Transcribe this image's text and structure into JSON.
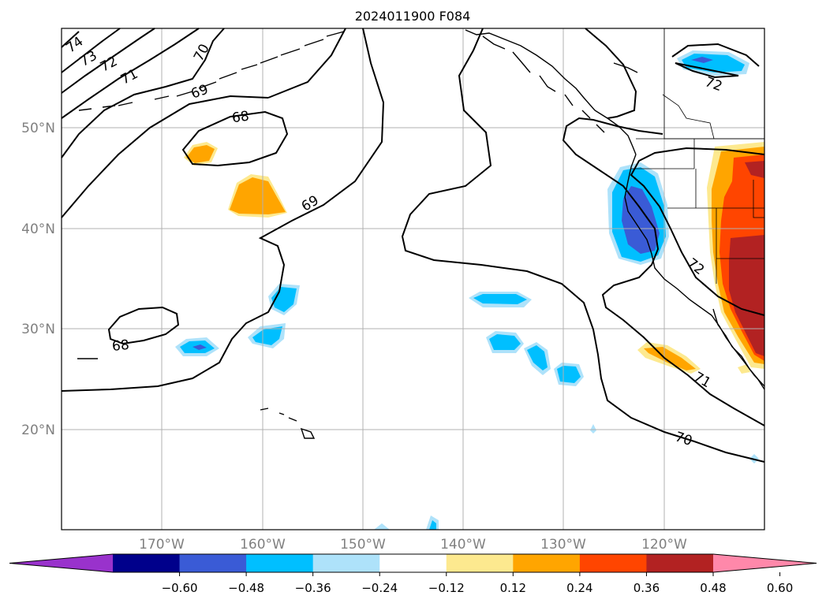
{
  "title": "2024011900 F084",
  "map": {
    "lat_ticks": [
      {
        "value": 50,
        "label": "50°N"
      },
      {
        "value": 40,
        "label": "40°N"
      },
      {
        "value": 30,
        "label": "30°N"
      },
      {
        "value": 20,
        "label": "20°N"
      }
    ],
    "lon_ticks": [
      {
        "value": -170,
        "label": "170°W"
      },
      {
        "value": -160,
        "label": "160°W"
      },
      {
        "value": -150,
        "label": "150°W"
      },
      {
        "value": -140,
        "label": "140°W"
      },
      {
        "value": -130,
        "label": "130°W"
      },
      {
        "value": -120,
        "label": "120°W"
      }
    ],
    "extent": {
      "lon": [
        -180,
        -110
      ],
      "lat": [
        10,
        60
      ]
    },
    "gridlines": true,
    "contour_labels": [
      "74",
      "73",
      "72",
      "71",
      "70",
      "69",
      "68",
      "68",
      "69",
      "72",
      "72",
      "71",
      "70"
    ],
    "contour_color": "#000000",
    "inset": true
  },
  "colorbar": {
    "tick_labels": [
      "−0.60",
      "−0.48",
      "−0.36",
      "−0.24",
      "−0.12",
      "0.12",
      "0.24",
      "0.36",
      "0.48",
      "0.60"
    ],
    "colors": [
      "#9932cc",
      "#00008b",
      "#3a5bd6",
      "#00bfff",
      "#aee2fa",
      "#ffffff",
      "#fde98f",
      "#ffa500",
      "#ff4500",
      "#b22222",
      "#ff88aa"
    ],
    "extend": "both"
  }
}
